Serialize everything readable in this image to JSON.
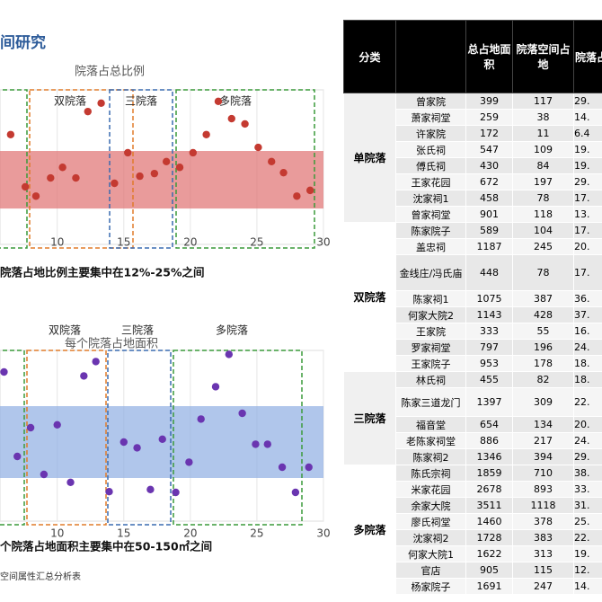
{
  "title": "间研究",
  "charts": [
    {
      "type": "scatter",
      "title": "院落占总比例",
      "group_labels": [
        "双院落",
        "三院落",
        "多院落"
      ],
      "caption": "院落占地比例主要集中在12%-25%之间",
      "color": "#c43a31",
      "band_color": "#e07070",
      "band": [
        12,
        25
      ],
      "xlim": [
        5.7,
        30
      ],
      "ylim": [
        3.9,
        38.8
      ],
      "xticks": [
        10,
        15,
        20,
        25,
        30
      ],
      "x": [
        6.5,
        7.6,
        8.4,
        9.5,
        10.4,
        11.4,
        12.3,
        13.3,
        14.3,
        15.3,
        16.2,
        17.3,
        18.2,
        19.2,
        20.2,
        21.2,
        22.1,
        23.1,
        24.1,
        25.1,
        26.1,
        27.0,
        28.0,
        29.0
      ],
      "values": [
        28.7,
        16.9,
        14.8,
        18.9,
        21.3,
        18.9,
        33.9,
        35.8,
        17.7,
        24.6,
        19.3,
        19.9,
        22.6,
        21.3,
        24.6,
        28.7,
        36.2,
        32.3,
        31.1,
        25.8,
        22.6,
        20.1,
        14.8,
        16.1
      ]
    },
    {
      "type": "scatter",
      "title": "每个院落占地面积",
      "group_labels": [
        "双院落",
        "三院落",
        "多院落"
      ],
      "caption": "个院落占地面积主要集中在50-150㎡之间",
      "color": "#6a35b0",
      "band_color": "#8eaee2",
      "band": [
        50,
        150
      ],
      "xlim": [
        5.7,
        30
      ],
      "ylim": [
        -10,
        227.5
      ],
      "xticks": [
        10,
        15,
        20,
        25,
        30
      ],
      "x": [
        6.0,
        7.0,
        8.0,
        9.0,
        10.0,
        11.0,
        12.0,
        12.9,
        13.9,
        15.0,
        16.0,
        17.0,
        17.9,
        18.9,
        19.9,
        20.8,
        21.9,
        22.9,
        23.9,
        24.9,
        25.8,
        26.9,
        27.9,
        28.9
      ],
      "values": [
        197.5,
        80,
        120,
        55,
        124,
        44,
        192,
        212,
        31,
        100,
        92,
        34,
        104,
        30,
        72,
        132,
        177,
        222,
        140,
        97,
        97,
        65,
        30,
        65
      ]
    }
  ],
  "footnote": "空间属性汇总分析表",
  "table": {
    "header": [
      "分类",
      "总占地面积",
      "院落空间占地",
      "院落占"
    ],
    "groups": [
      {
        "name": "单院落",
        "rows": [
          [
            "曾家院",
            399,
            117,
            "29."
          ],
          [
            "萧家祠堂",
            259,
            38,
            "14."
          ],
          [
            "许家院",
            172,
            11,
            "6.4"
          ],
          [
            "张氏祠",
            547,
            109,
            "19."
          ],
          [
            "傅氏祠",
            430,
            84,
            "19."
          ],
          [
            "王家花园",
            672,
            197,
            "29."
          ],
          [
            "沈家祠1",
            458,
            78,
            "17."
          ],
          [
            "曾家祠堂",
            901,
            118,
            "13."
          ]
        ]
      },
      {
        "name": "双院落",
        "rows": [
          [
            "陈家院子",
            589,
            104,
            "17."
          ],
          [
            "盖忠祠",
            1187,
            245,
            "20."
          ],
          [
            "金线庄/冯氏庙",
            448,
            78,
            "17."
          ],
          [
            "陈家祠1",
            1075,
            387,
            "36."
          ],
          [
            "何家大院2",
            1143,
            428,
            "37."
          ],
          [
            "王家院",
            333,
            55,
            "16."
          ],
          [
            "罗家祠堂",
            797,
            196,
            "24."
          ],
          [
            "王家院子",
            953,
            178,
            "18."
          ]
        ]
      },
      {
        "name": "三院落",
        "rows": [
          [
            "林氏祠",
            455,
            82,
            "18."
          ],
          [
            "陈家三道龙门",
            1397,
            309,
            "22."
          ],
          [
            "福音堂",
            654,
            134,
            "20."
          ],
          [
            "老陈家祠堂",
            886,
            217,
            "24."
          ],
          [
            "陈家祠2",
            1346,
            394,
            "29."
          ]
        ]
      },
      {
        "name": "多院落",
        "rows": [
          [
            "陈氏宗祠",
            1859,
            710,
            "38."
          ],
          [
            "米家花园",
            2678,
            893,
            "33."
          ],
          [
            "余家大院",
            3511,
            1118,
            "31."
          ],
          [
            "廖氏祠堂",
            1460,
            378,
            "25."
          ],
          [
            "沈家祠2",
            1728,
            383,
            "22."
          ],
          [
            "何家大院1",
            1622,
            313,
            "19."
          ],
          [
            "官店",
            905,
            115,
            "12."
          ],
          [
            "杨家院子",
            1691,
            247,
            "14."
          ]
        ]
      }
    ]
  }
}
